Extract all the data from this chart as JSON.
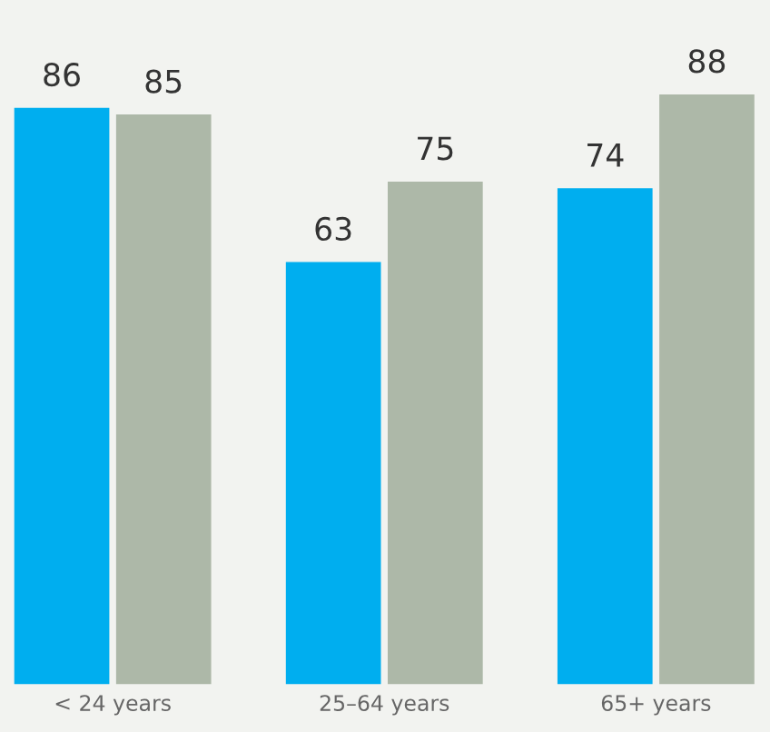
{
  "chart_data": {
    "type": "bar",
    "categories": [
      "< 24 years",
      "25–64 years",
      "65+ years"
    ],
    "series": [
      {
        "color": "#00aeef",
        "values": [
          86,
          63,
          74
        ]
      },
      {
        "color": "#adb8a8",
        "values": [
          85,
          75,
          88
        ]
      }
    ],
    "data_labels": true,
    "grid": false,
    "legend": false,
    "tick_labels": "x"
  }
}
